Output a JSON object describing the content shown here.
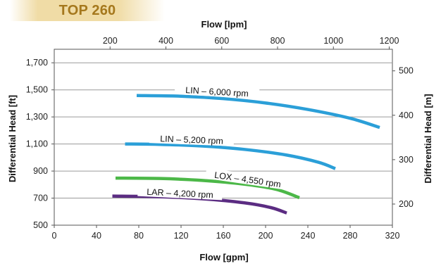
{
  "banner": {
    "label": "TOP 260",
    "color": "#a5781d"
  },
  "chart_data": {
    "type": "line",
    "x_bottom": {
      "label": "Flow [gpm]",
      "range": [
        0,
        320
      ],
      "ticks": [
        0,
        40,
        80,
        120,
        160,
        200,
        240,
        280,
        320
      ]
    },
    "x_top": {
      "label": "Flow [lpm]",
      "ticks": [
        200,
        400,
        600,
        800,
        1000,
        1200
      ]
    },
    "y_left": {
      "label": "Differential Head [ft]",
      "range": [
        500,
        1800
      ],
      "ticks": [
        500,
        700,
        900,
        1100,
        1300,
        1500,
        1700
      ],
      "tick_labels": [
        "500",
        "700",
        "900",
        "1,100",
        "1,300",
        "1,500",
        "1,700"
      ]
    },
    "y_right": {
      "label": "Differential Head [m]",
      "ticks": [
        200,
        300,
        400,
        500
      ]
    },
    "grid": true,
    "series": [
      {
        "name": "LIN – 6,000 rpm",
        "color": "#2b9fd8",
        "x": [
          78,
          120,
          160,
          200,
          240,
          280,
          308
        ],
        "y": [
          1458,
          1453,
          1435,
          1403,
          1355,
          1290,
          1222
        ]
      },
      {
        "name": "LIN – 5,200 rpm",
        "color": "#2b9fd8",
        "x": [
          67,
          100,
          140,
          180,
          220,
          250,
          266
        ],
        "y": [
          1100,
          1097,
          1085,
          1060,
          1018,
          965,
          918
        ]
      },
      {
        "name": "LOX – 4,550 rpm",
        "color": "#4cb848",
        "x": [
          58,
          100,
          140,
          180,
          210,
          232
        ],
        "y": [
          848,
          845,
          831,
          803,
          765,
          703
        ]
      },
      {
        "name": "LAR – 4,200 rpm",
        "color": "#5b2c82",
        "x": [
          55,
          100,
          140,
          180,
          205,
          220
        ],
        "y": [
          715,
          710,
          695,
          665,
          630,
          590
        ]
      }
    ]
  }
}
